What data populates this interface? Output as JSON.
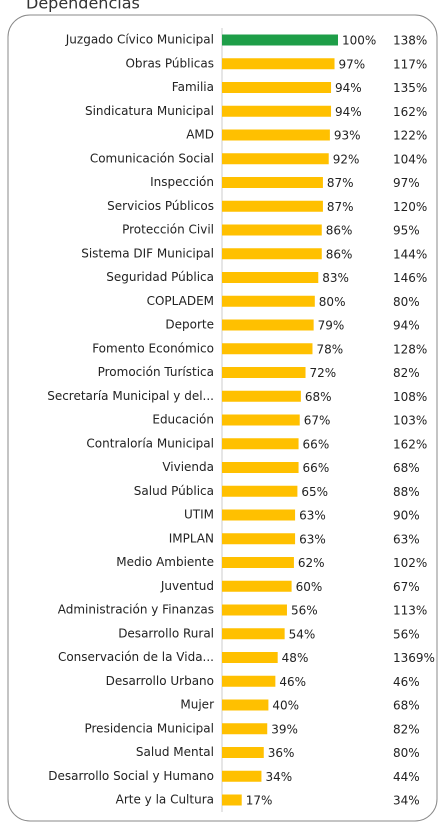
{
  "chart_data": {
    "type": "bar",
    "orientation": "horizontal",
    "title": "Dependencias",
    "categories": [
      "Juzgado Cívico Municipal",
      "Obras Públicas",
      "Familia",
      "Sindicatura Municipal",
      "AMD",
      "Comunicación Social",
      "Inspección",
      "Servicios Públicos",
      "Protección Civil",
      "Sistema DIF Municipal",
      "Seguridad Pública",
      "COPLADEM",
      "Deporte",
      "Fomento Económico",
      "Promoción Turística",
      "Secretaría Municipal y del...",
      "Educación",
      "Contraloría Municipal",
      "Vivienda",
      "Salud Pública",
      "UTIM",
      "IMPLAN",
      "Medio Ambiente",
      "Juventud",
      "Administración y Finanzas",
      "Desarrollo Rural",
      "Conservación de la Vida...",
      "Desarrollo Urbano",
      "Mujer",
      "Presidencia Municipal",
      "Salud Mental",
      "Desarrollo Social y Humano",
      "Arte y la Cultura"
    ],
    "values": [
      100,
      97,
      94,
      94,
      93,
      92,
      87,
      87,
      86,
      86,
      83,
      80,
      79,
      78,
      72,
      68,
      67,
      66,
      66,
      65,
      63,
      63,
      62,
      60,
      56,
      54,
      48,
      46,
      40,
      39,
      36,
      34,
      17
    ],
    "value_labels": [
      "100%",
      "97%",
      "94%",
      "94%",
      "93%",
      "92%",
      "87%",
      "87%",
      "86%",
      "86%",
      "83%",
      "80%",
      "79%",
      "78%",
      "72%",
      "68%",
      "67%",
      "66%",
      "66%",
      "65%",
      "63%",
      "63%",
      "62%",
      "60%",
      "56%",
      "54%",
      "48%",
      "46%",
      "40%",
      "39%",
      "36%",
      "34%",
      "17%"
    ],
    "values2": [
      138,
      117,
      135,
      162,
      122,
      104,
      97,
      120,
      95,
      144,
      146,
      80,
      94,
      128,
      82,
      108,
      103,
      162,
      68,
      88,
      90,
      63,
      102,
      67,
      113,
      56,
      1369,
      46,
      68,
      82,
      80,
      44,
      34
    ],
    "values2_labels": [
      "138%",
      "117%",
      "135%",
      "162%",
      "122%",
      "104%",
      "97%",
      "120%",
      "95%",
      "144%",
      "146%",
      "80%",
      "94%",
      "128%",
      "82%",
      "108%",
      "103%",
      "162%",
      "68%",
      "88%",
      "90%",
      "63%",
      "102%",
      "67%",
      "113%",
      "56%",
      "1369%",
      "46%",
      "68%",
      "82%",
      "80%",
      "44%",
      "34%"
    ],
    "colors": [
      "#1e9e48",
      "#ffc000",
      "#ffc000",
      "#ffc000",
      "#ffc000",
      "#ffc000",
      "#ffc000",
      "#ffc000",
      "#ffc000",
      "#ffc000",
      "#ffc000",
      "#ffc000",
      "#ffc000",
      "#ffc000",
      "#ffc000",
      "#ffc000",
      "#ffc000",
      "#ffc000",
      "#ffc000",
      "#ffc000",
      "#ffc000",
      "#ffc000",
      "#ffc000",
      "#ffc000",
      "#ffc000",
      "#ffc000",
      "#ffc000",
      "#ffc000",
      "#ffc000",
      "#ffc000",
      "#ffc000",
      "#ffc000",
      "#ffc000"
    ],
    "xlim": [
      0,
      100
    ]
  }
}
